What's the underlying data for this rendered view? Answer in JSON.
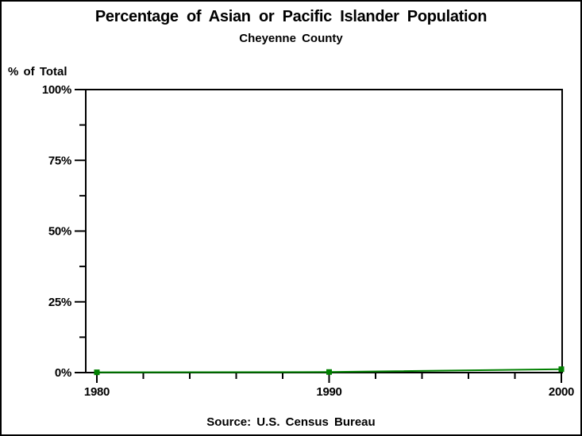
{
  "chart_data": {
    "type": "line",
    "title": "Percentage of Asian or Pacific Islander Population",
    "subtitle": "Cheyenne County",
    "ylabel": "% of Total",
    "xlabel": "",
    "source": "Source: U.S. Census Bureau",
    "x": [
      1980,
      1990,
      2000
    ],
    "values": [
      0.1,
      0.2,
      1.2
    ],
    "line_color": "#008000",
    "marker": "square",
    "axis_color": "#000000",
    "background_color": "#ffffff",
    "xlim": [
      1980,
      2000
    ],
    "ylim": [
      0,
      100
    ],
    "yticks": {
      "values": [
        0,
        25,
        50,
        75,
        100
      ],
      "labels": [
        "0%",
        "25%",
        "50%",
        "75%",
        "100%"
      ],
      "minor": [
        12.5,
        37.5,
        62.5,
        87.5
      ]
    },
    "xticks": {
      "values": [
        1980,
        1990,
        2000
      ],
      "labels": [
        "1980",
        "1990",
        "2000"
      ],
      "minor": [
        1982,
        1984,
        1986,
        1988,
        1992,
        1994,
        1996,
        1998
      ]
    },
    "grid": false,
    "legend": false
  }
}
